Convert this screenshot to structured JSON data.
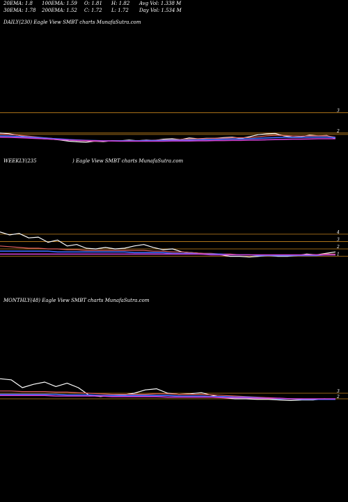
{
  "header": {
    "row1": {
      "ema20": "20EMA: 1.8",
      "ema100": "100EMA: 1.59",
      "open": "O: 1.81",
      "high": "H: 1.82",
      "avg_vol": "Avg Vol: 1.338  M"
    },
    "row2": {
      "ema30": "30EMA: 1.78",
      "ema200": "200EMA: 1.52",
      "close": "C: 1.72",
      "low": "L: 1.72",
      "day_vol": "Day Vol: 1.534  M"
    }
  },
  "panels": {
    "daily": {
      "label": "DAILY(230) Eagle   View  SMBT charts MunafaSutra.com",
      "price_labels": [
        "3",
        "2"
      ]
    },
    "weekly": {
      "label_left": "WEEKLY(235",
      "label_right": ") Eagle   View  SMBT charts MunafaSutra.com",
      "price_labels": [
        "4",
        "3",
        "2",
        "1"
      ]
    },
    "monthly": {
      "label": "MONTHLY(48) Eagle   View  SMBT charts MunafaSutra.com",
      "price_labels": [
        "3",
        "2"
      ]
    }
  },
  "colors": {
    "background": "#000000",
    "price": "#ffffff",
    "ema_short": "#e06060",
    "ema_mid": "#3b6cff",
    "ema_long": "#d040d0",
    "level": "#c8861e"
  },
  "chart_data": [
    {
      "type": "line",
      "panel": "daily",
      "ylim": [
        1.0,
        3.4
      ],
      "levels": [
        3.0,
        2.0,
        1.93
      ],
      "series": [
        {
          "role": "price",
          "values": [
            2.0,
            1.97,
            1.9,
            1.82,
            1.78,
            1.72,
            1.7,
            1.66,
            1.6,
            1.57,
            1.55,
            1.6,
            1.58,
            1.62,
            1.62,
            1.66,
            1.62,
            1.66,
            1.64,
            1.7,
            1.72,
            1.68,
            1.76,
            1.72,
            1.74,
            1.74,
            1.78,
            1.8,
            1.74,
            1.82,
            1.92,
            1.96,
            1.98,
            1.86,
            1.8,
            1.82,
            1.9,
            1.86,
            1.88,
            1.72
          ]
        },
        {
          "role": "ema_short",
          "values": [
            1.95,
            1.93,
            1.9,
            1.86,
            1.82,
            1.78,
            1.74,
            1.7,
            1.66,
            1.63,
            1.61,
            1.6,
            1.6,
            1.61,
            1.62,
            1.63,
            1.63,
            1.64,
            1.65,
            1.67,
            1.68,
            1.69,
            1.71,
            1.72,
            1.73,
            1.74,
            1.75,
            1.77,
            1.77,
            1.78,
            1.82,
            1.86,
            1.89,
            1.88,
            1.86,
            1.85,
            1.86,
            1.86,
            1.86,
            1.8
          ]
        },
        {
          "role": "ema_mid",
          "values": [
            1.86,
            1.85,
            1.83,
            1.81,
            1.79,
            1.76,
            1.73,
            1.71,
            1.68,
            1.66,
            1.64,
            1.63,
            1.62,
            1.62,
            1.62,
            1.62,
            1.62,
            1.63,
            1.63,
            1.64,
            1.65,
            1.65,
            1.66,
            1.67,
            1.68,
            1.69,
            1.7,
            1.71,
            1.71,
            1.72,
            1.74,
            1.76,
            1.78,
            1.79,
            1.79,
            1.79,
            1.8,
            1.8,
            1.8,
            1.78
          ]
        },
        {
          "role": "ema_long",
          "values": [
            1.8,
            1.79,
            1.78,
            1.76,
            1.74,
            1.72,
            1.7,
            1.68,
            1.66,
            1.64,
            1.63,
            1.62,
            1.61,
            1.61,
            1.6,
            1.6,
            1.6,
            1.6,
            1.6,
            1.6,
            1.61,
            1.61,
            1.61,
            1.62,
            1.62,
            1.63,
            1.63,
            1.64,
            1.64,
            1.65,
            1.66,
            1.67,
            1.68,
            1.69,
            1.7,
            1.7,
            1.71,
            1.72,
            1.72,
            1.72
          ]
        }
      ]
    },
    {
      "type": "line",
      "panel": "weekly",
      "ylim": [
        0.3,
        5.5
      ],
      "levels": [
        4.0,
        3.0,
        2.0,
        1.0
      ],
      "series": [
        {
          "role": "price",
          "values": [
            4.3,
            3.9,
            4.1,
            3.5,
            3.6,
            2.9,
            3.2,
            2.4,
            2.6,
            2.1,
            2.0,
            2.2,
            2.0,
            2.1,
            2.4,
            2.6,
            2.2,
            1.9,
            2.0,
            1.6,
            1.5,
            1.4,
            1.3,
            1.2,
            1.0,
            1.0,
            0.9,
            1.0,
            1.1,
            1.0,
            1.0,
            1.1,
            1.3,
            1.2,
            1.4,
            1.6
          ]
        },
        {
          "role": "ema_short",
          "values": [
            2.4,
            2.3,
            2.2,
            2.1,
            2.1,
            2.0,
            2.0,
            1.9,
            1.9,
            1.8,
            1.8,
            1.8,
            1.8,
            1.8,
            1.8,
            1.8,
            1.7,
            1.7,
            1.6,
            1.6,
            1.5,
            1.4,
            1.4,
            1.3,
            1.3,
            1.2,
            1.2,
            1.1,
            1.1,
            1.1,
            1.1,
            1.1,
            1.2,
            1.2,
            1.3,
            1.3
          ]
        },
        {
          "role": "ema_mid",
          "values": [
            1.7,
            1.7,
            1.7,
            1.7,
            1.7,
            1.7,
            1.6,
            1.6,
            1.6,
            1.6,
            1.6,
            1.6,
            1.6,
            1.6,
            1.5,
            1.5,
            1.5,
            1.5,
            1.4,
            1.4,
            1.4,
            1.3,
            1.3,
            1.3,
            1.2,
            1.2,
            1.2,
            1.1,
            1.1,
            1.1,
            1.1,
            1.1,
            1.1,
            1.1,
            1.2,
            1.2
          ]
        },
        {
          "role": "ema_long",
          "values": [
            1.3,
            1.3,
            1.3,
            1.3,
            1.3,
            1.3,
            1.3,
            1.3,
            1.3,
            1.3,
            1.3,
            1.3,
            1.3,
            1.3,
            1.3,
            1.3,
            1.3,
            1.3,
            1.3,
            1.3,
            1.3,
            1.3,
            1.2,
            1.2,
            1.2,
            1.2,
            1.2,
            1.2,
            1.2,
            1.2,
            1.2,
            1.2,
            1.2,
            1.2,
            1.2,
            1.2
          ]
        }
      ]
    },
    {
      "type": "line",
      "panel": "monthly",
      "ylim": [
        1.0,
        8.5
      ],
      "levels": [
        3.0,
        2.0
      ],
      "series": [
        {
          "role": "price",
          "values": [
            5.6,
            5.4,
            4.0,
            4.6,
            5.0,
            4.2,
            4.8,
            4.0,
            2.6,
            2.4,
            2.6,
            2.7,
            3.0,
            3.6,
            3.8,
            3.0,
            2.8,
            2.9,
            3.1,
            2.6,
            2.2,
            2.0,
            2.0,
            1.9,
            1.9,
            1.8,
            1.7,
            1.8,
            1.8,
            2.0,
            1.9
          ]
        },
        {
          "role": "ema_short",
          "values": [
            3.4,
            3.4,
            3.3,
            3.3,
            3.3,
            3.2,
            3.2,
            3.1,
            3.0,
            2.9,
            2.8,
            2.8,
            2.8,
            2.8,
            2.9,
            2.9,
            2.8,
            2.8,
            2.8,
            2.7,
            2.6,
            2.5,
            2.4,
            2.3,
            2.2,
            2.1,
            2.0,
            2.0,
            1.9,
            1.9,
            1.9
          ]
        },
        {
          "role": "ema_mid",
          "values": [
            2.8,
            2.8,
            2.8,
            2.8,
            2.8,
            2.8,
            2.7,
            2.7,
            2.7,
            2.6,
            2.6,
            2.6,
            2.6,
            2.6,
            2.6,
            2.6,
            2.5,
            2.5,
            2.5,
            2.4,
            2.4,
            2.3,
            2.3,
            2.2,
            2.1,
            2.0,
            2.0,
            1.9,
            1.9,
            1.9,
            1.9
          ]
        },
        {
          "role": "ema_long",
          "values": [
            2.6,
            2.6,
            2.6,
            2.6,
            2.6,
            2.5,
            2.5,
            2.5,
            2.5,
            2.5,
            2.4,
            2.4,
            2.4,
            2.4,
            2.4,
            2.3,
            2.3,
            2.3,
            2.3,
            2.3,
            2.2,
            2.2,
            2.2,
            2.1,
            2.1,
            2.1,
            2.0,
            2.0,
            2.0,
            2.0,
            2.0
          ]
        }
      ]
    }
  ]
}
